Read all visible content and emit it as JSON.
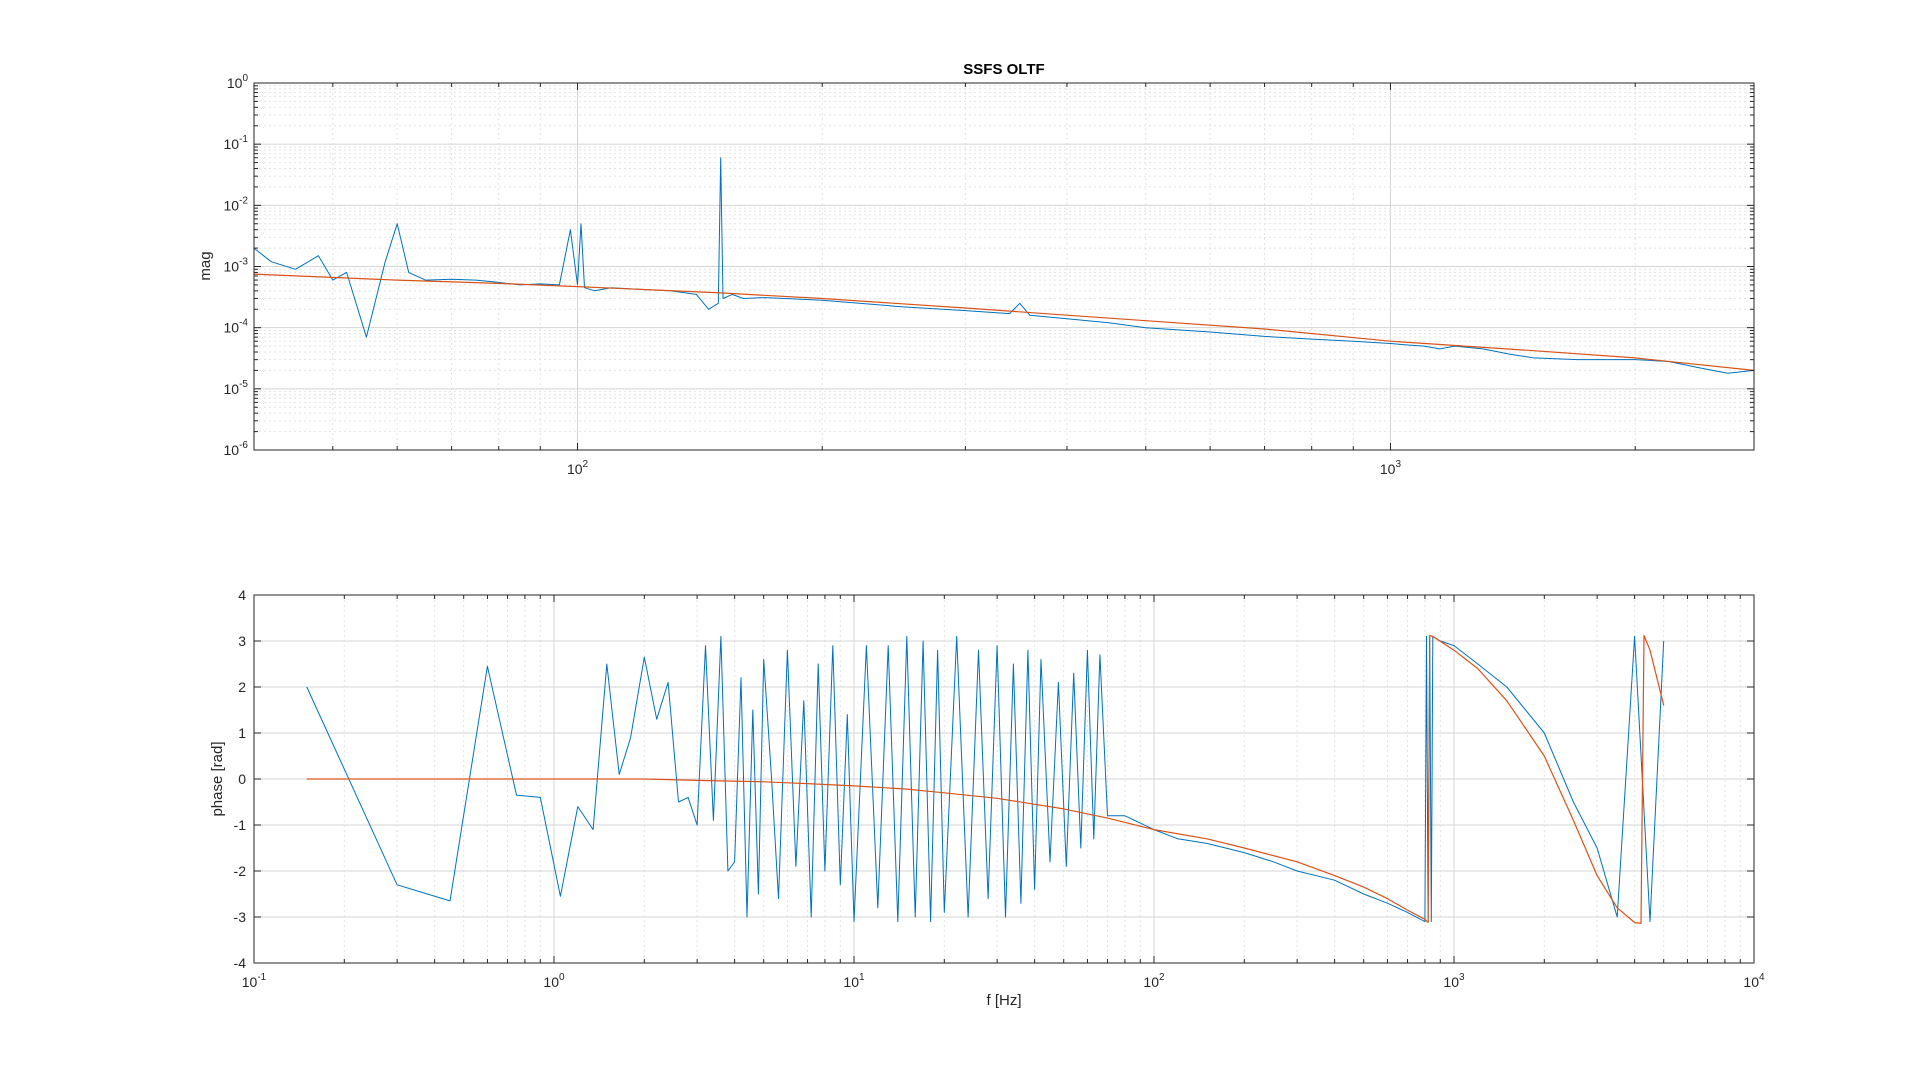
{
  "chart_data": [
    {
      "type": "line",
      "title": "SSFS OLTF",
      "xlabel": "",
      "ylabel": "mag",
      "xscale": "log",
      "yscale": "log",
      "xlim": [
        40,
        2800
      ],
      "ylim": [
        1e-06,
        1
      ],
      "grid": true,
      "colors": {
        "measured": "#0072BD",
        "model": "#D95319"
      },
      "x_ticks": [
        {
          "base": "10",
          "exp": "2"
        },
        {
          "base": "10",
          "exp": "3"
        }
      ],
      "y_ticks": [
        {
          "base": "10",
          "exp": "0"
        },
        {
          "base": "10",
          "exp": "-1"
        },
        {
          "base": "10",
          "exp": "-2"
        },
        {
          "base": "10",
          "exp": "-3"
        },
        {
          "base": "10",
          "exp": "-4"
        },
        {
          "base": "10",
          "exp": "-5"
        },
        {
          "base": "10",
          "exp": "-6"
        }
      ],
      "series": [
        {
          "role": "measured",
          "x": [
            40,
            42,
            45,
            48,
            50,
            52,
            55,
            58,
            60,
            62,
            65,
            70,
            75,
            80,
            85,
            90,
            95,
            98,
            100,
            101,
            102,
            105,
            110,
            120,
            130,
            140,
            145,
            149,
            150,
            151,
            155,
            160,
            170,
            180,
            200,
            250,
            300,
            340,
            350,
            360,
            400,
            450,
            500,
            600,
            700,
            800,
            900,
            1000,
            1050,
            1100,
            1150,
            1200,
            1300,
            1400,
            1500,
            1700,
            2000,
            2200,
            2400,
            2600,
            2800
          ],
          "y": [
            0.002,
            0.0012,
            0.0009,
            0.0015,
            0.0006,
            0.0008,
            7e-05,
            0.0012,
            0.005,
            0.0008,
            0.0006,
            0.00062,
            0.0006,
            0.00055,
            0.0005,
            0.00052,
            0.0005,
            0.004,
            0.0005,
            0.005,
            0.00045,
            0.0004,
            0.00045,
            0.00042,
            0.0004,
            0.00035,
            0.0002,
            0.00025,
            0.06,
            0.0003,
            0.00035,
            0.0003,
            0.00031,
            0.0003,
            0.00028,
            0.00022,
            0.00019,
            0.00017,
            0.00025,
            0.00016,
            0.00014,
            0.00012,
            0.0001,
            8.5e-05,
            7.2e-05,
            6.5e-05,
            6e-05,
            5.5e-05,
            5.2e-05,
            5e-05,
            4.5e-05,
            5e-05,
            4.5e-05,
            3.7e-05,
            3.2e-05,
            3e-05,
            3e-05,
            2.8e-05,
            2.2e-05,
            1.8e-05,
            2e-05
          ]
        },
        {
          "role": "model",
          "x": [
            40,
            60,
            80,
            100,
            150,
            200,
            300,
            400,
            500,
            700,
            1000,
            1500,
            2000,
            2800
          ],
          "y": [
            0.00075,
            0.0006,
            0.00053,
            0.00047,
            0.00037,
            0.0003,
            0.00021,
            0.00016,
            0.00013,
            9.5e-05,
            6e-05,
            4.2e-05,
            3.2e-05,
            2e-05
          ]
        }
      ]
    },
    {
      "type": "line",
      "title": "",
      "xlabel": "f [Hz]",
      "ylabel": "phase [rad]",
      "xscale": "log",
      "yscale": "linear",
      "xlim": [
        0.1,
        10000
      ],
      "ylim": [
        -4,
        4
      ],
      "grid": true,
      "colors": {
        "measured": "#0072BD",
        "model": "#D95319"
      },
      "x_ticks": [
        {
          "base": "10",
          "exp": "-1"
        },
        {
          "base": "10",
          "exp": "0"
        },
        {
          "base": "10",
          "exp": "1"
        },
        {
          "base": "10",
          "exp": "2"
        },
        {
          "base": "10",
          "exp": "3"
        },
        {
          "base": "10",
          "exp": "4"
        }
      ],
      "y_ticks": [
        "4",
        "3",
        "2",
        "1",
        "0",
        "-1",
        "-2",
        "-3",
        "-4"
      ],
      "series": [
        {
          "role": "measured",
          "x": [
            0.15,
            0.3,
            0.45,
            0.6,
            0.75,
            0.9,
            1.05,
            1.2,
            1.35,
            1.5,
            1.65,
            1.8,
            2.0,
            2.2,
            2.4,
            2.6,
            2.8,
            3.0,
            3.2,
            3.4,
            3.6,
            3.8,
            4.0,
            4.2,
            4.4,
            4.6,
            4.8,
            5.0,
            5.3,
            5.6,
            6.0,
            6.4,
            6.8,
            7.2,
            7.6,
            8.0,
            8.5,
            9.0,
            9.5,
            10,
            11,
            12,
            13,
            14,
            15,
            16,
            17,
            18,
            19,
            20,
            22,
            24,
            26,
            28,
            30,
            32,
            34,
            36,
            38,
            40,
            42,
            45,
            48,
            51,
            54,
            57,
            60,
            63,
            66,
            70,
            80,
            100,
            120,
            150,
            200,
            250,
            300,
            400,
            500,
            600,
            700,
            800,
            810,
            820,
            830,
            840,
            850,
            900,
            1000,
            1200,
            1500,
            2000,
            2500,
            3000,
            3500,
            4000,
            4500,
            5000
          ],
          "y": [
            2.0,
            -2.3,
            -2.65,
            2.45,
            -0.35,
            -0.4,
            -2.55,
            -0.6,
            -1.1,
            2.5,
            0.1,
            0.9,
            2.65,
            1.3,
            2.1,
            -0.5,
            -0.4,
            -1.0,
            2.9,
            -0.9,
            3.1,
            -2.0,
            -1.8,
            2.2,
            -3.0,
            1.5,
            -2.5,
            2.6,
            0.1,
            -2.6,
            2.8,
            -1.9,
            1.7,
            -3.0,
            2.5,
            -2.0,
            2.9,
            -2.3,
            1.4,
            -3.1,
            2.9,
            -2.8,
            2.9,
            -3.1,
            3.1,
            -3.0,
            3.0,
            -3.1,
            2.8,
            -2.9,
            3.1,
            -3.0,
            2.8,
            -2.6,
            2.9,
            -3.0,
            2.5,
            -2.7,
            2.8,
            -2.4,
            2.6,
            -1.8,
            2.1,
            -1.9,
            2.3,
            -1.5,
            2.8,
            -1.3,
            2.7,
            -0.8,
            -0.8,
            -1.1,
            -1.3,
            -1.4,
            -1.6,
            -1.8,
            -2.0,
            -2.2,
            -2.5,
            -2.7,
            -2.9,
            -3.1,
            3.1,
            -3.1,
            3.1,
            -3.1,
            3.1,
            3.0,
            2.9,
            2.5,
            2.0,
            1.0,
            -0.5,
            -1.5,
            -3.0,
            3.1,
            -3.1,
            3.0
          ]
        },
        {
          "role": "model",
          "x": [
            0.15,
            0.3,
            0.5,
            1,
            2,
            3,
            5,
            7,
            10,
            15,
            20,
            30,
            50,
            70,
            100,
            150,
            200,
            300,
            400,
            500,
            600,
            700,
            800,
            820,
            830,
            850,
            1000,
            1200,
            1500,
            2000,
            2500,
            3000,
            3500,
            4000,
            4200,
            4300,
            4500,
            5000
          ],
          "y": [
            0,
            0,
            0,
            0,
            0,
            -0.03,
            -0.06,
            -0.1,
            -0.15,
            -0.22,
            -0.3,
            -0.42,
            -0.65,
            -0.85,
            -1.1,
            -1.3,
            -1.5,
            -1.8,
            -2.1,
            -2.35,
            -2.6,
            -2.85,
            -3.05,
            -3.12,
            3.12,
            3.1,
            2.8,
            2.4,
            1.7,
            0.5,
            -0.9,
            -2.1,
            -2.8,
            -3.12,
            -3.14,
            3.12,
            2.8,
            1.6
          ]
        }
      ]
    }
  ]
}
